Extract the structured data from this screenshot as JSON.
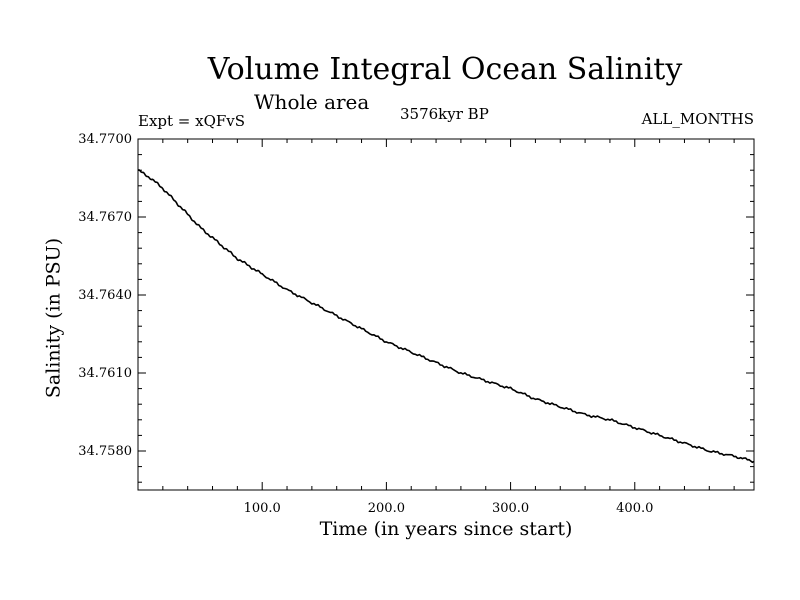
{
  "chart_data": {
    "type": "line",
    "title": "Volume Integral Ocean Salinity",
    "subtitle": "Whole area",
    "annotations": {
      "experiment": "Expt = xQFvS",
      "period": "3576kyr BP",
      "months": "ALL_MONTHS"
    },
    "xlabel": "Time (in years since start)",
    "ylabel": "Salinity (in PSU)",
    "xlim": [
      0,
      496
    ],
    "ylim": [
      34.7565,
      34.77
    ],
    "xticks": [
      100,
      200,
      300,
      400
    ],
    "xtick_labels": [
      "100.0",
      "200.0",
      "300.0",
      "400.0"
    ],
    "yticks": [
      34.758,
      34.761,
      34.764,
      34.767,
      34.77
    ],
    "ytick_labels": [
      "34.7580",
      "34.7610",
      "34.7640",
      "34.7670",
      "34.7700"
    ],
    "grid": false,
    "series": [
      {
        "name": "Salinity",
        "x": [
          0,
          10,
          20,
          30,
          40,
          50,
          60,
          70,
          80,
          90,
          100,
          120,
          140,
          160,
          180,
          200,
          220,
          240,
          260,
          280,
          300,
          320,
          340,
          360,
          380,
          400,
          420,
          440,
          460,
          480,
          496
        ],
        "values": [
          34.7688,
          34.7685,
          34.7681,
          34.7676,
          34.7671,
          34.7666,
          34.7662,
          34.7658,
          34.7654,
          34.7651,
          34.7648,
          34.7642,
          34.7637,
          34.7632,
          34.7627,
          34.7622,
          34.7618,
          34.7614,
          34.761,
          34.7607,
          34.7604,
          34.76,
          34.7597,
          34.7594,
          34.7592,
          34.7589,
          34.7586,
          34.7583,
          34.758,
          34.7578,
          34.7576
        ]
      }
    ]
  }
}
